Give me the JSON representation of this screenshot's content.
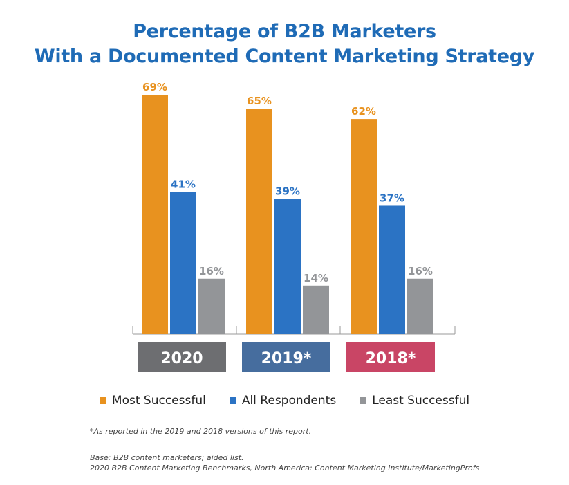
{
  "chart_data": {
    "type": "bar",
    "title_lines": [
      "Percentage of B2B Marketers",
      "With a Documented Content Marketing Strategy"
    ],
    "categories": [
      "2020",
      "2019*",
      "2018*"
    ],
    "category_colors": [
      "#6d6e71",
      "#466d9e",
      "#c94565"
    ],
    "series": [
      {
        "name": "Most Successful",
        "color": "#e8921f",
        "values": [
          69,
          65,
          62
        ],
        "labels": [
          "69%",
          "65%",
          "62%"
        ]
      },
      {
        "name": "All Respondents",
        "color": "#2b73c4",
        "values": [
          41,
          39,
          37
        ],
        "labels": [
          "41%",
          "39%",
          "37%"
        ]
      },
      {
        "name": "Least Successful",
        "color": "#939598",
        "values": [
          16,
          14,
          16
        ],
        "labels": [
          "16%",
          "14%",
          "16%"
        ]
      }
    ],
    "ylim": [
      0,
      69
    ],
    "grid": false,
    "legend_position": "bottom"
  },
  "footnotes": {
    "asterisk": "*As reported in the 2019 and 2018 versions of this report.",
    "base": "Base: B2B content marketers; aided list.",
    "source": "2020 B2B Content Marketing Benchmarks, North America: Content Marketing Institute/MarketingProfs"
  }
}
